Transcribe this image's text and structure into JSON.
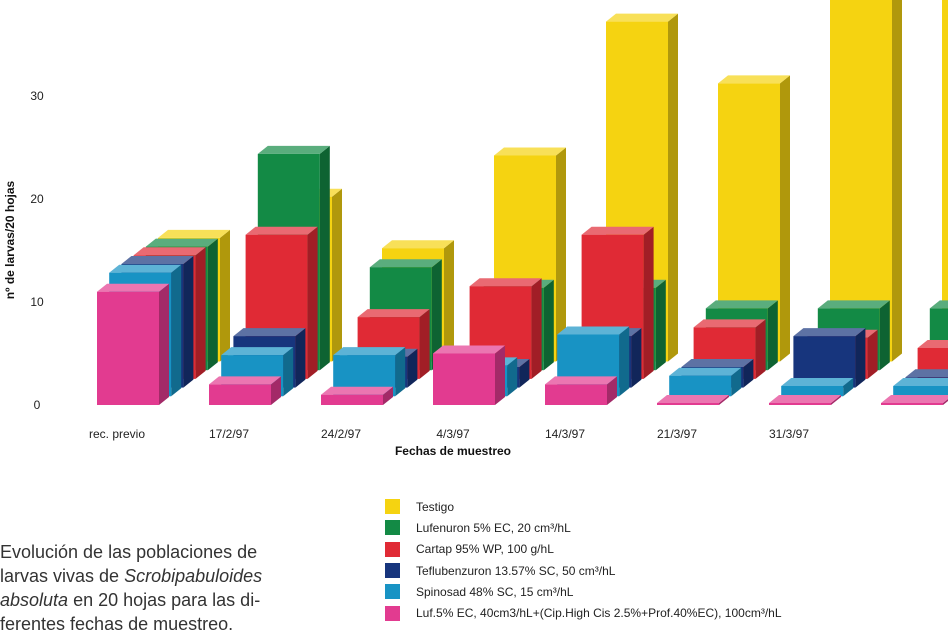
{
  "chart_data": {
    "type": "bar",
    "title": "",
    "xlabel": "Fechas de muestreo",
    "ylabel": "nº de larvas/20 hojas",
    "ylim": [
      0,
      35
    ],
    "y_ticks": [
      "0",
      "10",
      "20",
      "30"
    ],
    "categories": [
      "rec. previo",
      "17/2/97",
      "24/2/97",
      "4/3/97",
      "14/3/97",
      "21/3/97",
      "31/3/97",
      ""
    ],
    "series": [
      {
        "name": "Testigo",
        "color": "#f5d311",
        "values": [
          12,
          16,
          11,
          20,
          33,
          27,
          36,
          38
        ]
      },
      {
        "name": "Lufenuron 5% EC,   20 cm³/hL",
        "color": "#138a45",
        "values": [
          12,
          21,
          10,
          8,
          8,
          6,
          6,
          6
        ]
      },
      {
        "name": "Cartap 95% WP,   100 g/hL",
        "color": "#e02a35",
        "values": [
          12,
          14,
          6,
          9,
          14,
          5,
          4,
          3
        ]
      },
      {
        "name": "Teflubenzuron 13.57% SC,   50 cm³/hL",
        "color": "#17357d",
        "values": [
          12,
          5,
          3,
          2,
          5,
          2,
          5,
          1
        ]
      },
      {
        "name": "Spinosad 48%  SC,   15 cm³/hL",
        "color": "#1893c4",
        "values": [
          12,
          4,
          4,
          3,
          6,
          2,
          1,
          1
        ]
      },
      {
        "name": "Luf.5% EC, 40cm3/hL+(Cip.High Cis 2.5%+Prof.40%EC), 100cm³/hL",
        "color": "#e23b90",
        "values": [
          11,
          2,
          1,
          5,
          2,
          0,
          0,
          0
        ]
      }
    ],
    "legend_position": "bottom-right",
    "grid": false
  },
  "caption": {
    "line1": "Evolución de las poblaciones de",
    "line2_pre": "larvas vivas de ",
    "line2_italic": "Scrobipabuloides",
    "line3_italic": "absoluta",
    "line3_post": " en 20 hojas para las di-",
    "line4": "ferentes fechas de muestreo."
  }
}
